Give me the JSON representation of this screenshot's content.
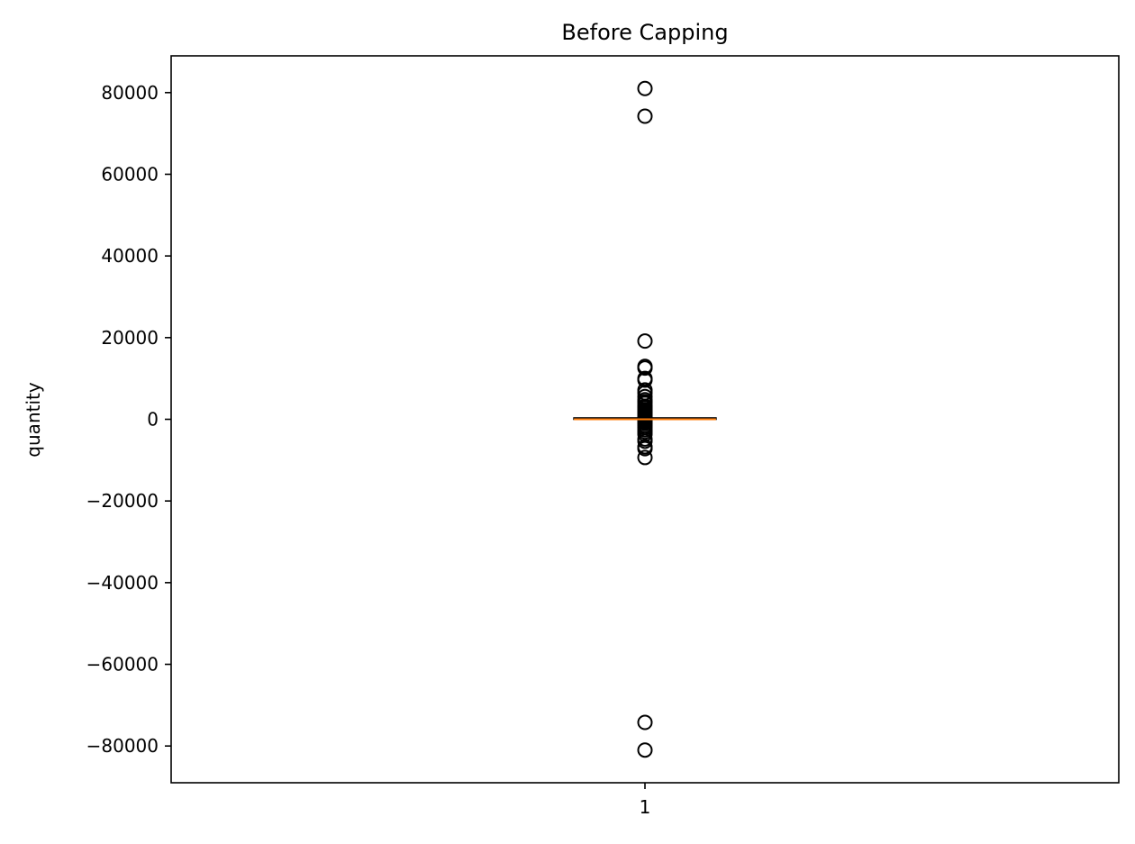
{
  "chart_data": {
    "type": "boxplot",
    "title": "Before Capping",
    "ylabel": "quantity",
    "xlabel": "",
    "ylim": [
      -89000,
      89000
    ],
    "yticks": [
      -80000,
      -60000,
      -40000,
      -20000,
      0,
      20000,
      40000,
      60000,
      80000
    ],
    "ytick_labels": [
      "−80000",
      "−60000",
      "−40000",
      "−20000",
      "0",
      "20000",
      "40000",
      "60000",
      "80000"
    ],
    "xticks": [
      1
    ],
    "xtick_labels": [
      "1"
    ],
    "grid": false,
    "colors": {
      "box": "#000000",
      "median": "#ff7f0e",
      "flier": "#000000"
    },
    "boxes": [
      {
        "position": 1,
        "whisker_low": -15,
        "q1": 1,
        "median": 3,
        "q3": 10,
        "whisker_high": 30,
        "fliers": [
          80995,
          74215,
          19152,
          12960,
          12540,
          10000,
          9600,
          7200,
          6480,
          5568,
          4800,
          4300,
          3906,
          3186,
          3114,
          2880,
          2400,
          2000,
          1728,
          1500,
          1200,
          1000,
          800,
          600,
          500,
          400,
          300,
          200,
          150,
          100,
          -100,
          -200,
          -300,
          -500,
          -800,
          -1000,
          -1500,
          -2000,
          -2600,
          -3114,
          -3667,
          -4830,
          -5368,
          -6720,
          -7200,
          -9360,
          -74215,
          -80995
        ]
      }
    ]
  }
}
